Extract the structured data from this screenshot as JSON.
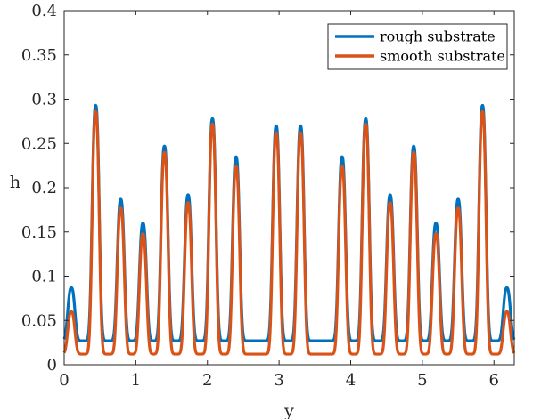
{
  "chart_data": {
    "type": "line",
    "title": "",
    "xlabel": "y",
    "ylabel": "h",
    "xlim": [
      0,
      6.2832
    ],
    "ylim": [
      0,
      0.4
    ],
    "xticks": [
      0,
      1,
      2,
      3,
      4,
      5,
      6
    ],
    "xtick_labels": [
      "0",
      "1",
      "2",
      "3",
      "4",
      "5",
      "6"
    ],
    "yticks": [
      0,
      0.05,
      0.1,
      0.15,
      0.2,
      0.25,
      0.3,
      0.35,
      0.4
    ],
    "ytick_labels": [
      "0",
      "0.05",
      "0.1",
      "0.15",
      "0.2",
      "0.25",
      "0.3",
      "0.35",
      "0.4"
    ],
    "grid": false,
    "legend_position": "top-right",
    "peak_width": 0.062,
    "series": [
      {
        "name": "rough substrate",
        "color": "#0072BD",
        "baseline": 0.027,
        "peaks": [
          {
            "x": 0.1,
            "h": 0.087
          },
          {
            "x": 0.44,
            "h": 0.293
          },
          {
            "x": 0.79,
            "h": 0.187
          },
          {
            "x": 1.1,
            "h": 0.16
          },
          {
            "x": 1.4,
            "h": 0.247
          },
          {
            "x": 1.73,
            "h": 0.192
          },
          {
            "x": 2.07,
            "h": 0.278
          },
          {
            "x": 2.4,
            "h": 0.235
          },
          {
            "x": 2.96,
            "h": 0.27
          },
          {
            "x": 3.3,
            "h": 0.27
          },
          {
            "x": 3.88,
            "h": 0.235
          },
          {
            "x": 4.21,
            "h": 0.278
          },
          {
            "x": 4.55,
            "h": 0.192
          },
          {
            "x": 4.88,
            "h": 0.247
          },
          {
            "x": 5.19,
            "h": 0.16
          },
          {
            "x": 5.5,
            "h": 0.187
          },
          {
            "x": 5.84,
            "h": 0.293
          },
          {
            "x": 6.18,
            "h": 0.087
          }
        ]
      },
      {
        "name": "smooth substrate",
        "color": "#D95319",
        "baseline": 0.012,
        "peaks": [
          {
            "x": 0.1,
            "h": 0.06
          },
          {
            "x": 0.44,
            "h": 0.286
          },
          {
            "x": 0.79,
            "h": 0.177
          },
          {
            "x": 1.1,
            "h": 0.148
          },
          {
            "x": 1.4,
            "h": 0.24
          },
          {
            "x": 1.73,
            "h": 0.183
          },
          {
            "x": 2.07,
            "h": 0.272
          },
          {
            "x": 2.4,
            "h": 0.224
          },
          {
            "x": 2.96,
            "h": 0.262
          },
          {
            "x": 3.3,
            "h": 0.262
          },
          {
            "x": 3.88,
            "h": 0.224
          },
          {
            "x": 4.21,
            "h": 0.272
          },
          {
            "x": 4.55,
            "h": 0.183
          },
          {
            "x": 4.88,
            "h": 0.24
          },
          {
            "x": 5.19,
            "h": 0.148
          },
          {
            "x": 5.5,
            "h": 0.177
          },
          {
            "x": 5.84,
            "h": 0.286
          },
          {
            "x": 6.18,
            "h": 0.06
          }
        ]
      }
    ]
  }
}
